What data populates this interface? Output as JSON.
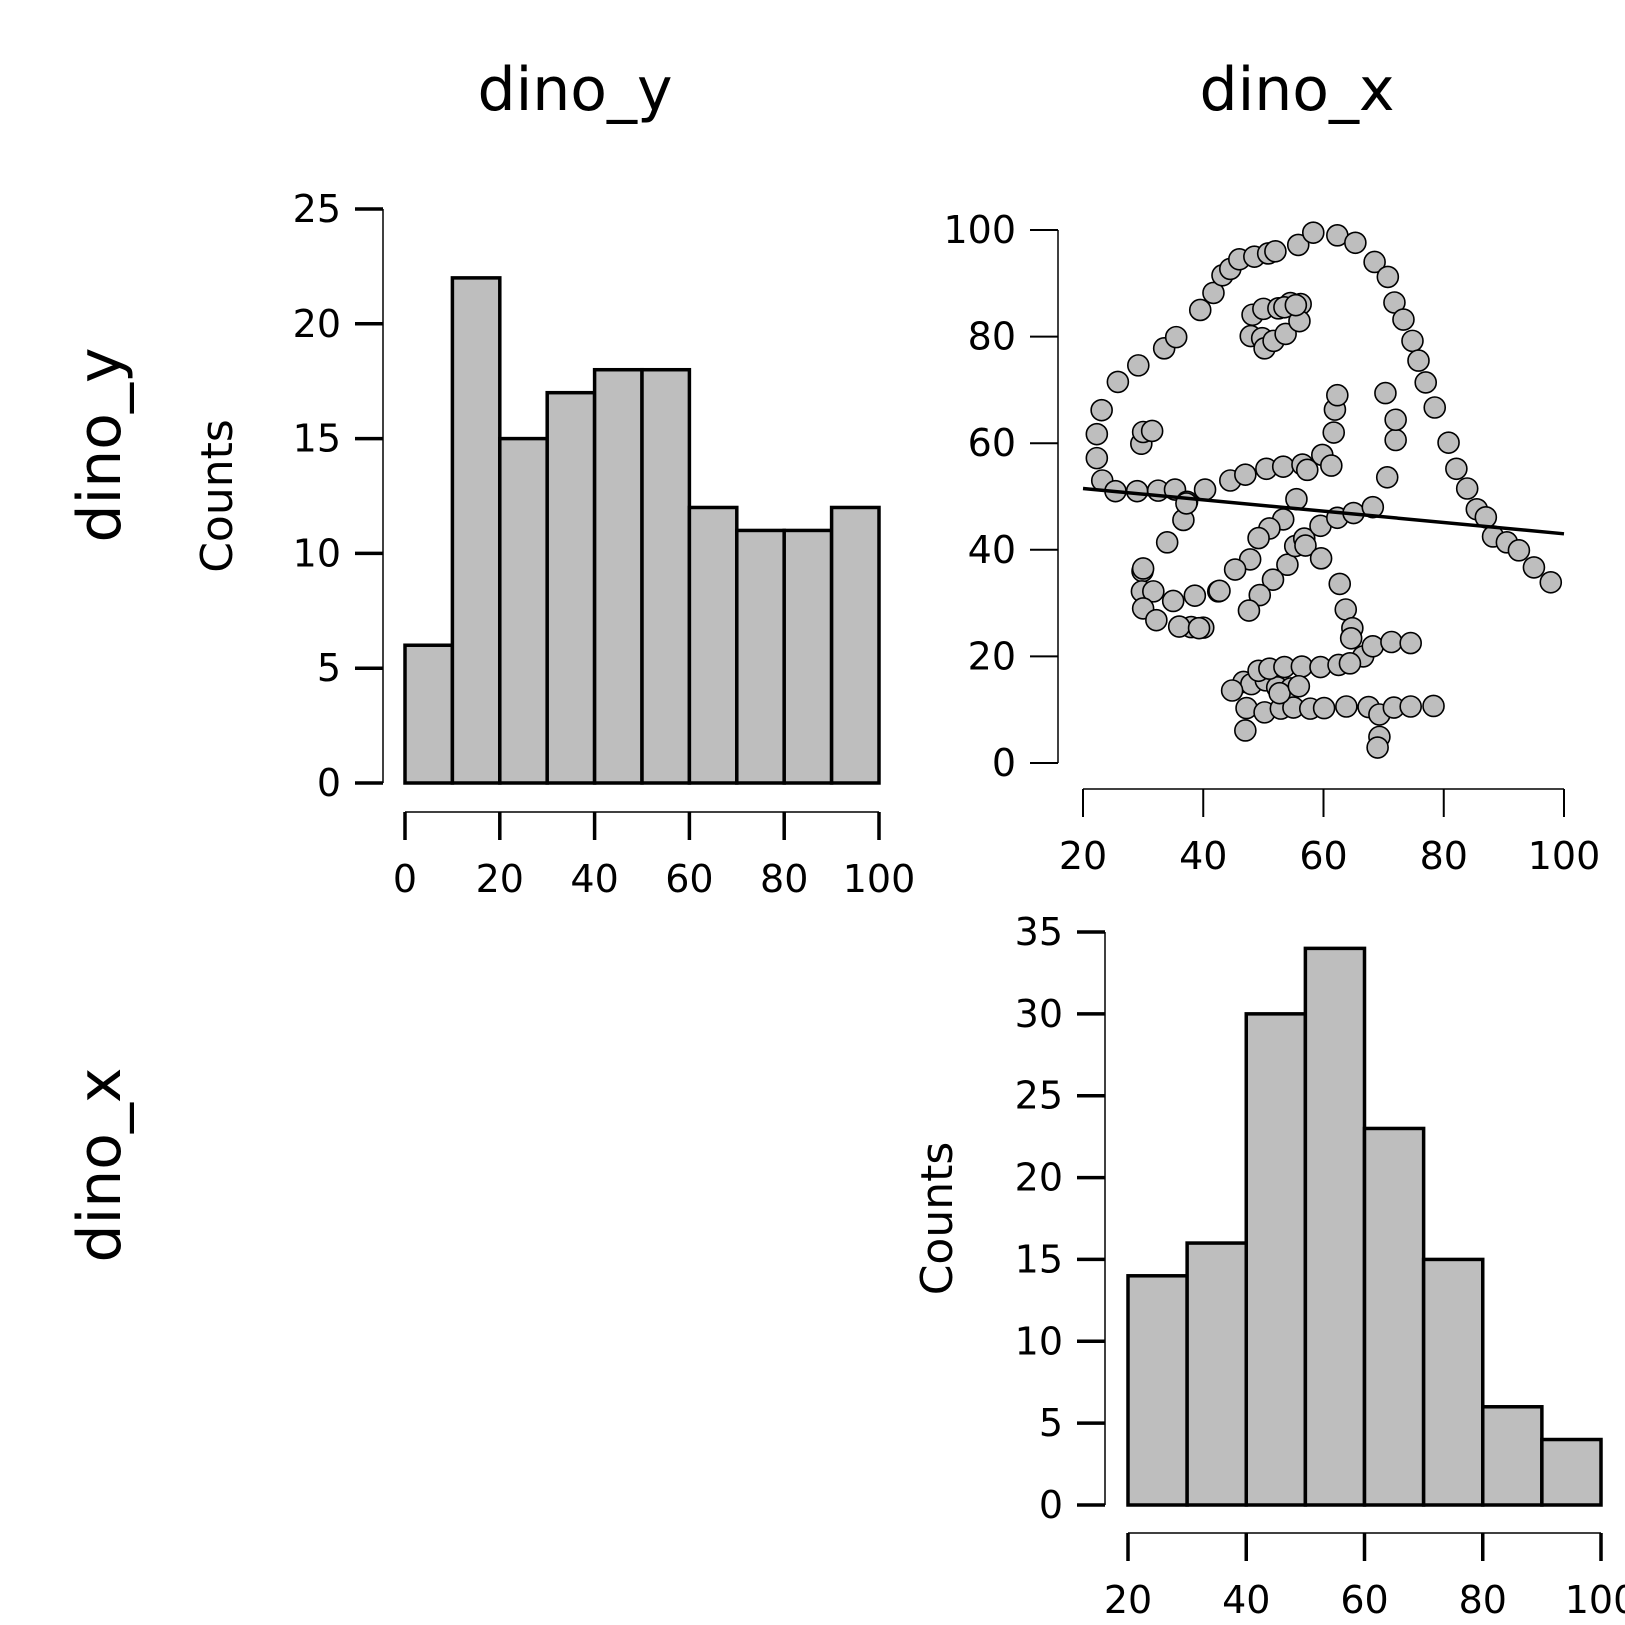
{
  "figure": {
    "column_titles": [
      "dino_y",
      "dino_x"
    ],
    "row_titles": [
      "dino_y",
      "dino_x"
    ]
  },
  "colors": {
    "bar_fill": "#bebebe",
    "point_fill": "#bebebe",
    "stroke": "#000000",
    "background": "#ffffff"
  },
  "chart_data": [
    {
      "id": "hist-dino-y",
      "type": "bar",
      "variable": "dino_y",
      "ylabel": "Counts",
      "xlabel": "",
      "bin_edges": [
        0,
        10,
        20,
        30,
        40,
        50,
        60,
        70,
        80,
        90,
        100
      ],
      "values": [
        6,
        22,
        15,
        17,
        18,
        18,
        12,
        11,
        11,
        12
      ],
      "xlim": [
        0,
        100
      ],
      "ylim": [
        0,
        25
      ],
      "xticks": [
        "0",
        "20",
        "40",
        "60",
        "80",
        "100"
      ],
      "yticks": [
        "0",
        "5",
        "10",
        "15",
        "20",
        "25"
      ],
      "grid": false
    },
    {
      "id": "scatter-dino",
      "type": "scatter",
      "x_variable": "dino_x",
      "y_variable": "dino_y",
      "xlim": [
        20,
        100
      ],
      "ylim": [
        0,
        100
      ],
      "xticks": [
        "20",
        "40",
        "60",
        "80",
        "100"
      ],
      "yticks": [
        "0",
        "20",
        "40",
        "60",
        "80",
        "100"
      ],
      "regression_line": {
        "x": [
          20,
          100
        ],
        "y": [
          51.5,
          43.0
        ]
      },
      "grid": false,
      "points": [
        [
          47.9,
          80.1
        ],
        [
          49.8,
          79.7
        ],
        [
          50.2,
          77.8
        ],
        [
          51.7,
          79.2
        ],
        [
          48.2,
          84.1
        ],
        [
          50.0,
          85.2
        ],
        [
          52.5,
          85.3
        ],
        [
          54.5,
          86.3
        ],
        [
          56.2,
          86.1
        ],
        [
          53.7,
          80.5
        ],
        [
          56.0,
          82.9
        ],
        [
          53.5,
          85.5
        ],
        [
          55.4,
          85.9
        ],
        [
          22.3,
          57.2
        ],
        [
          22.3,
          61.7
        ],
        [
          23.1,
          66.2
        ],
        [
          25.8,
          71.5
        ],
        [
          29.2,
          74.6
        ],
        [
          33.5,
          77.8
        ],
        [
          35.5,
          79.9
        ],
        [
          39.5,
          85.0
        ],
        [
          41.7,
          88.2
        ],
        [
          43.2,
          91.5
        ],
        [
          44.5,
          92.7
        ],
        [
          46.0,
          94.5
        ],
        [
          48.5,
          95.0
        ],
        [
          50.8,
          95.6
        ],
        [
          52.0,
          96.0
        ],
        [
          55.8,
          97.2
        ],
        [
          58.3,
          99.5
        ],
        [
          62.3,
          99.0
        ],
        [
          65.3,
          97.6
        ],
        [
          68.5,
          94.0
        ],
        [
          70.7,
          91.2
        ],
        [
          71.8,
          86.4
        ],
        [
          73.3,
          83.2
        ],
        [
          74.8,
          79.2
        ],
        [
          75.8,
          75.5
        ],
        [
          77.0,
          71.4
        ],
        [
          78.5,
          66.7
        ],
        [
          80.8,
          60.1
        ],
        [
          82.1,
          55.2
        ],
        [
          83.9,
          51.5
        ],
        [
          85.5,
          47.6
        ],
        [
          87.0,
          46.1
        ],
        [
          88.2,
          42.5
        ],
        [
          90.5,
          41.4
        ],
        [
          92.5,
          39.9
        ],
        [
          95.0,
          36.7
        ],
        [
          97.8,
          33.9
        ],
        [
          23.2,
          53.0
        ],
        [
          25.4,
          51.0
        ],
        [
          29.0,
          51.0
        ],
        [
          32.5,
          51.1
        ],
        [
          35.3,
          51.3
        ],
        [
          37.3,
          49.0
        ],
        [
          40.3,
          51.3
        ],
        [
          44.5,
          53.0
        ],
        [
          47.0,
          54.1
        ],
        [
          50.5,
          55.2
        ],
        [
          53.3,
          55.6
        ],
        [
          56.5,
          56.0
        ],
        [
          57.3,
          55.0
        ],
        [
          59.8,
          57.8
        ],
        [
          61.7,
          62.0
        ],
        [
          61.9,
          66.3
        ],
        [
          62.3,
          69.0
        ],
        [
          61.3,
          55.8
        ],
        [
          55.5,
          49.5
        ],
        [
          53.3,
          45.7
        ],
        [
          51.0,
          44.0
        ],
        [
          49.2,
          42.2
        ],
        [
          47.8,
          38.2
        ],
        [
          45.3,
          36.3
        ],
        [
          42.5,
          32.2
        ],
        [
          40.0,
          25.4
        ],
        [
          38.0,
          25.5
        ],
        [
          36.0,
          25.6
        ],
        [
          36.7,
          45.6
        ],
        [
          34.0,
          41.4
        ],
        [
          37.2,
          48.7
        ],
        [
          54.0,
          37.2
        ],
        [
          55.3,
          40.7
        ],
        [
          56.8,
          42.1
        ],
        [
          57.0,
          40.8
        ],
        [
          59.5,
          44.5
        ],
        [
          62.3,
          46.0
        ],
        [
          65.0,
          46.9
        ],
        [
          68.2,
          48.0
        ],
        [
          70.6,
          53.6
        ],
        [
          72.0,
          60.6
        ],
        [
          72.0,
          64.4
        ],
        [
          70.3,
          69.4
        ],
        [
          29.9,
          36.0
        ],
        [
          30.0,
          36.5
        ],
        [
          29.8,
          32.2
        ],
        [
          31.7,
          32.2
        ],
        [
          35.0,
          30.4
        ],
        [
          38.6,
          31.4
        ],
        [
          42.7,
          32.3
        ],
        [
          30.0,
          29.0
        ],
        [
          32.2,
          26.8
        ],
        [
          39.3,
          25.3
        ],
        [
          29.7,
          59.9
        ],
        [
          30.0,
          62.1
        ],
        [
          31.5,
          62.3
        ],
        [
          51.6,
          34.4
        ],
        [
          49.4,
          31.5
        ],
        [
          47.6,
          28.6
        ],
        [
          59.6,
          38.4
        ],
        [
          62.7,
          33.6
        ],
        [
          63.7,
          28.8
        ],
        [
          64.8,
          25.3
        ],
        [
          64.6,
          23.4
        ],
        [
          66.6,
          20.0
        ],
        [
          68.2,
          21.9
        ],
        [
          71.3,
          22.7
        ],
        [
          74.5,
          22.5
        ],
        [
          46.7,
          15.2
        ],
        [
          48.0,
          14.8
        ],
        [
          50.4,
          15.5
        ],
        [
          52.3,
          14.2
        ],
        [
          54.6,
          14.0
        ],
        [
          49.2,
          17.3
        ],
        [
          51.0,
          17.7
        ],
        [
          53.5,
          18.0
        ],
        [
          56.4,
          18.1
        ],
        [
          59.5,
          18.0
        ],
        [
          62.5,
          18.4
        ],
        [
          64.4,
          18.7
        ],
        [
          44.8,
          13.6
        ],
        [
          47.2,
          10.3
        ],
        [
          50.2,
          9.5
        ],
        [
          52.9,
          10.2
        ],
        [
          55.0,
          10.4
        ],
        [
          57.8,
          10.2
        ],
        [
          60.1,
          10.3
        ],
        [
          63.8,
          10.6
        ],
        [
          67.5,
          10.5
        ],
        [
          69.3,
          9.1
        ],
        [
          71.7,
          10.4
        ],
        [
          74.5,
          10.6
        ],
        [
          78.3,
          10.7
        ],
        [
          69.3,
          4.9
        ],
        [
          69.0,
          2.9
        ],
        [
          47.0,
          6.1
        ],
        [
          52.7,
          13.1
        ],
        [
          55.9,
          14.4
        ]
      ]
    },
    {
      "id": "hist-dino-x",
      "type": "bar",
      "variable": "dino_x",
      "ylabel": "Counts",
      "xlabel": "",
      "bin_edges": [
        20,
        30,
        40,
        50,
        60,
        70,
        80,
        90,
        100
      ],
      "values": [
        14,
        16,
        30,
        34,
        23,
        15,
        6,
        4
      ],
      "xlim": [
        20,
        100
      ],
      "ylim": [
        0,
        35
      ],
      "xticks": [
        "20",
        "40",
        "60",
        "80",
        "100"
      ],
      "yticks": [
        "0",
        "5",
        "10",
        "15",
        "20",
        "25",
        "30",
        "35"
      ],
      "grid": false
    }
  ]
}
